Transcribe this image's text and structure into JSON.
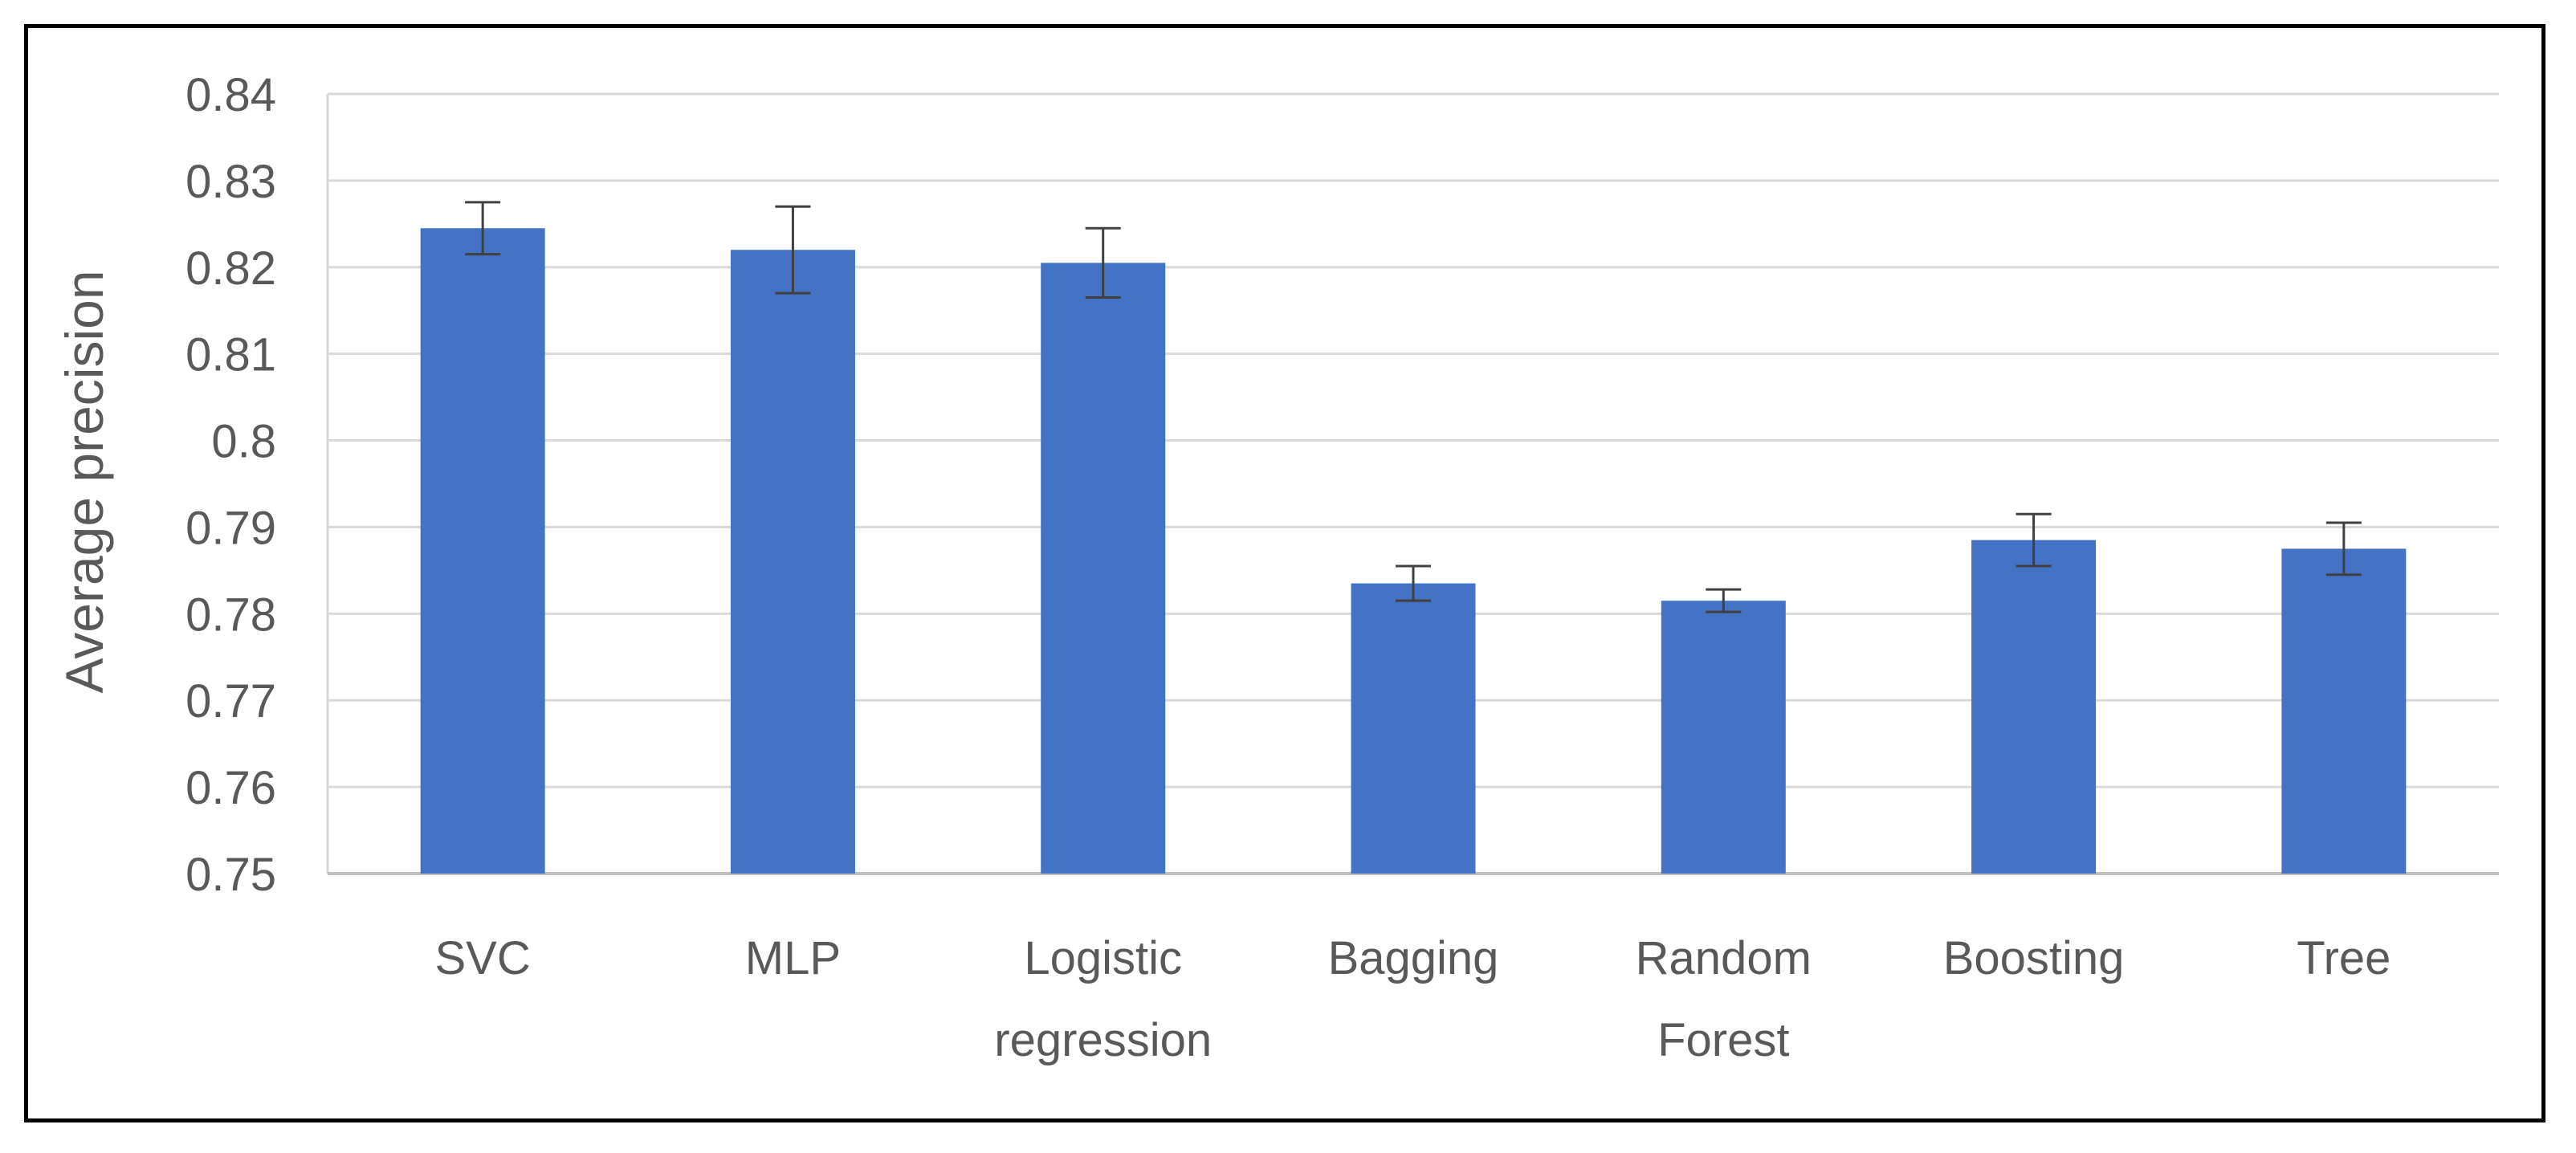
{
  "chart_data": {
    "type": "bar",
    "title": "",
    "xlabel": "",
    "ylabel": "Average precision",
    "categories": [
      "SVC",
      "MLP",
      "Logistic regression",
      "Bagging",
      "Random Forest",
      "Boosting",
      "Tree"
    ],
    "category_lines": [
      [
        "SVC"
      ],
      [
        "MLP"
      ],
      [
        "Logistic",
        "regression"
      ],
      [
        "Bagging"
      ],
      [
        "Random",
        "Forest"
      ],
      [
        "Boosting"
      ],
      [
        "Tree"
      ]
    ],
    "values": [
      0.8245,
      0.822,
      0.8205,
      0.7835,
      0.7815,
      0.7885,
      0.7875
    ],
    "error": [
      0.003,
      0.005,
      0.004,
      0.002,
      0.0013,
      0.003,
      0.003
    ],
    "ylim": [
      0.75,
      0.84
    ],
    "yticks": [
      "0.75",
      "0.76",
      "0.77",
      "0.78",
      "0.79",
      "0.8",
      "0.81",
      "0.82",
      "0.83",
      "0.84"
    ],
    "ytick_values": [
      0.75,
      0.76,
      0.77,
      0.78,
      0.79,
      0.8,
      0.81,
      0.82,
      0.83,
      0.84
    ],
    "grid": true,
    "legend": "none",
    "colors": {
      "bar": "#4472C4",
      "grid": "#D9D9D9",
      "axis": "#BFBFBF",
      "error_bar": "#404040",
      "text": "#595959"
    }
  }
}
